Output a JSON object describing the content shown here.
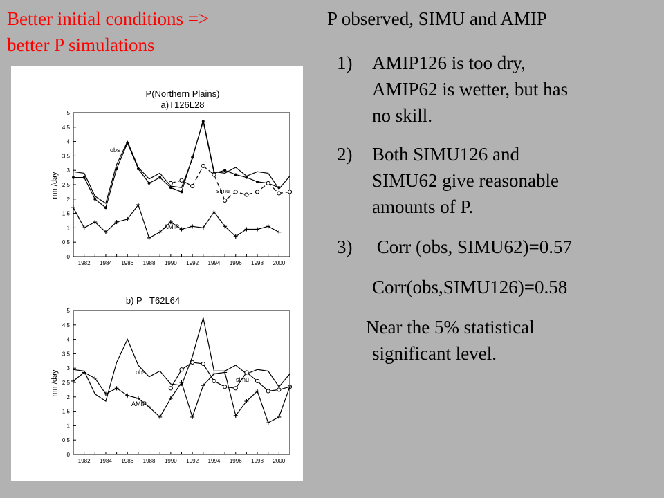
{
  "slide": {
    "title_left": [
      "Better initial conditions =>",
      "better P simulations"
    ],
    "title_right": "P observed, SIMU and AMIP",
    "notes": [
      {
        "num": "1)",
        "lines": [
          "AMIP126 is too dry,",
          "AMIP62 is wetter, but has",
          "no skill."
        ]
      },
      {
        "num": "2)",
        "lines": [
          "Both SIMU126 and",
          "SIMU62 give reasonable",
          "amounts of P."
        ]
      },
      {
        "num": "3)",
        "lines": [
          " Corr (obs, SIMU62)=0.57"
        ]
      }
    ],
    "corr_line": "Corr(obs,SIMU126)=0.58",
    "near_lines": [
      "Near the 5% statistical",
      "significant level."
    ]
  },
  "colors": {
    "background": "#b2b2b2",
    "title_red": "#ff0000",
    "panel": "#ffffff",
    "ink": "#000000"
  },
  "chart_data": [
    {
      "type": "line",
      "title": "P(Northern Plains)",
      "subtitle": "a)T126L28",
      "xlabel": "",
      "ylabel": "mm/day",
      "ylim": [
        0,
        5
      ],
      "xlim": [
        1981,
        2001
      ],
      "y_ticks": [
        "0",
        "0.5",
        "1",
        "1.5",
        "2",
        "2.5",
        "3",
        "3.5",
        "4",
        "4.5",
        "5"
      ],
      "x_ticks": [
        "1982",
        "1984",
        "1986",
        "1988",
        "1990",
        "1992",
        "1994",
        "1996",
        "1998",
        "2000"
      ],
      "grid": false,
      "series": [
        {
          "name": "obs",
          "marker": "none",
          "dash": "solid",
          "x": [
            1981,
            1982,
            1983,
            1984,
            1985,
            1986,
            1987,
            1988,
            1989,
            1990,
            1991,
            1992,
            1993,
            1994,
            1995,
            1996,
            1997,
            1998,
            1999,
            2000,
            2001
          ],
          "y": [
            2.95,
            2.9,
            2.1,
            1.85,
            3.2,
            4.0,
            3.1,
            2.7,
            2.9,
            2.45,
            2.4,
            3.4,
            4.75,
            2.95,
            2.9,
            3.1,
            2.8,
            2.95,
            2.9,
            2.35,
            2.8
          ]
        },
        {
          "name": "",
          "marker": "dot",
          "dash": "solid",
          "x": [
            1981,
            1982,
            1983,
            1984,
            1985,
            1986,
            1987,
            1988,
            1989,
            1990,
            1991,
            1992,
            1993,
            1994,
            1995,
            1996,
            1997,
            1998,
            1999,
            2000
          ],
          "y": [
            2.75,
            2.75,
            2.0,
            1.7,
            3.05,
            3.95,
            3.05,
            2.55,
            2.75,
            2.4,
            2.25,
            3.45,
            4.7,
            2.9,
            3.0,
            2.85,
            2.75,
            2.6,
            2.55,
            2.4
          ]
        },
        {
          "name": "simu",
          "marker": "circle",
          "dash": "dashed",
          "x": [
            1990,
            1991,
            1992,
            1993,
            1994,
            1995,
            1996,
            1997,
            1998,
            1999,
            2000,
            2001
          ],
          "y": [
            2.55,
            2.65,
            2.45,
            3.15,
            2.85,
            1.95,
            2.25,
            2.15,
            2.25,
            2.55,
            2.2,
            2.25
          ]
        },
        {
          "name": "AMIP",
          "marker": "plus",
          "dash": "solid",
          "x": [
            1981,
            1982,
            1983,
            1984,
            1985,
            1986,
            1987,
            1988,
            1989,
            1990,
            1991,
            1992,
            1993,
            1994,
            1995,
            1996,
            1997,
            1998,
            1999,
            2000
          ],
          "y": [
            1.7,
            1.0,
            1.2,
            0.85,
            1.2,
            1.3,
            1.8,
            0.65,
            0.85,
            1.2,
            0.95,
            1.05,
            1.0,
            1.55,
            1.05,
            0.7,
            0.95,
            0.95,
            1.05,
            0.85
          ]
        }
      ]
    },
    {
      "type": "line",
      "title": "b) P   T62L64",
      "xlabel": "",
      "ylabel": "mm/day",
      "ylim": [
        0,
        5
      ],
      "xlim": [
        1981,
        2001
      ],
      "y_ticks": [
        "0",
        "0.5",
        "1",
        "1.5",
        "2",
        "2.5",
        "3",
        "3.5",
        "4",
        "4.5",
        "5"
      ],
      "x_ticks": [
        "1982",
        "1984",
        "1986",
        "1988",
        "1990",
        "1992",
        "1994",
        "1996",
        "1998",
        "2000"
      ],
      "grid": false,
      "series": [
        {
          "name": "obs",
          "marker": "none",
          "dash": "solid",
          "x": [
            1981,
            1982,
            1983,
            1984,
            1985,
            1986,
            1987,
            1988,
            1989,
            1990,
            1991,
            1992,
            1993,
            1994,
            1995,
            1996,
            1997,
            1998,
            1999,
            2000,
            2001
          ],
          "y": [
            2.95,
            2.9,
            2.1,
            1.85,
            3.2,
            4.0,
            3.1,
            2.7,
            2.9,
            2.45,
            2.4,
            3.4,
            4.75,
            2.9,
            2.9,
            3.1,
            2.8,
            2.95,
            2.9,
            2.35,
            2.8
          ]
        },
        {
          "name": "simu",
          "marker": "circle",
          "dash": "solid",
          "x": [
            1990,
            1991,
            1992,
            1993,
            1994,
            1995,
            1996,
            1997,
            1998,
            1999,
            2000,
            2001
          ],
          "y": [
            2.3,
            2.95,
            3.2,
            3.15,
            2.55,
            2.35,
            2.3,
            2.85,
            2.55,
            2.2,
            2.25,
            2.35
          ]
        },
        {
          "name": "AMIP",
          "marker": "plus",
          "dash": "solid",
          "x": [
            1981,
            1982,
            1983,
            1984,
            1985,
            1986,
            1987,
            1988,
            1989,
            1990,
            1991,
            1992,
            1993,
            1994,
            1995,
            1996,
            1997,
            1998,
            1999,
            2000,
            2001
          ],
          "y": [
            2.55,
            2.85,
            2.65,
            2.1,
            2.3,
            2.05,
            1.95,
            1.65,
            1.3,
            1.95,
            2.5,
            1.3,
            2.4,
            2.8,
            2.85,
            1.35,
            1.85,
            2.2,
            1.1,
            1.3,
            2.35
          ]
        }
      ]
    }
  ]
}
